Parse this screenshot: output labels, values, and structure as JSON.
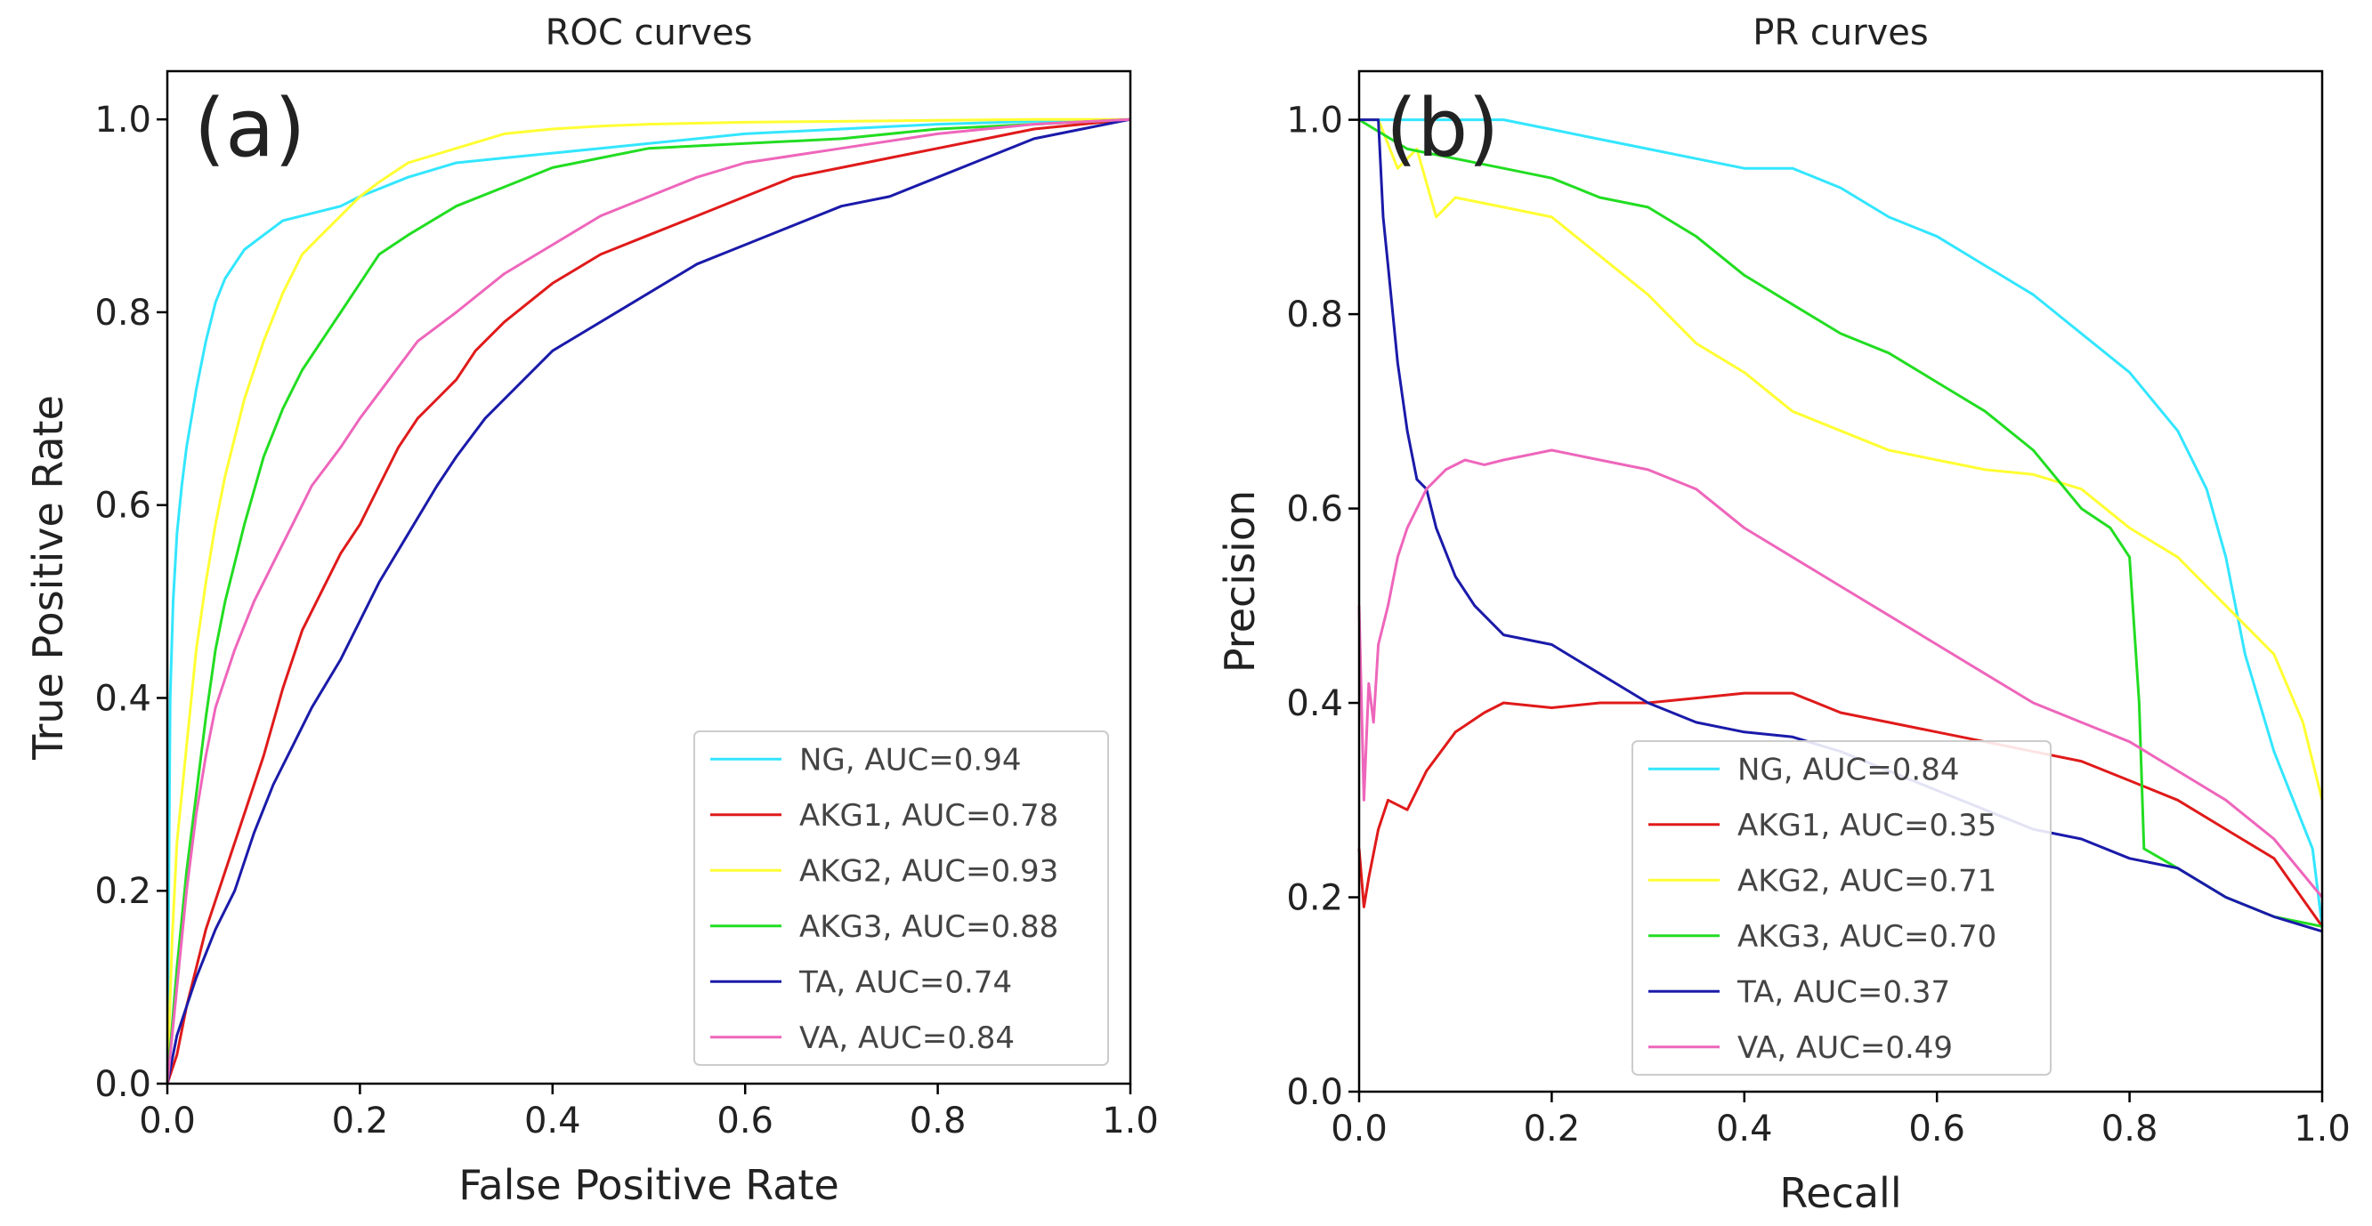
{
  "chart_data": [
    {
      "type": "line",
      "title": "ROC curves",
      "panel_label": "(a)",
      "xlabel": "False Positive Rate",
      "ylabel": "True Positive Rate",
      "xlim": [
        0,
        1
      ],
      "ylim": [
        0,
        1.05
      ],
      "xticks": [
        "0.0",
        "0.2",
        "0.4",
        "0.6",
        "0.8",
        "1.0"
      ],
      "yticks": [
        "0.0",
        "0.2",
        "0.4",
        "0.6",
        "0.8",
        "1.0"
      ],
      "grid": false,
      "legend_position": "lower-right",
      "series": [
        {
          "name": "NG",
          "label": "NG, AUC=0.94",
          "color": "#33e6ff",
          "x": [
            0,
            0.003,
            0.006,
            0.01,
            0.015,
            0.02,
            0.03,
            0.04,
            0.05,
            0.06,
            0.07,
            0.08,
            0.1,
            0.12,
            0.14,
            0.18,
            0.2,
            0.25,
            0.3,
            0.35,
            0.4,
            0.45,
            0.5,
            0.55,
            0.6,
            0.7,
            0.8,
            0.9,
            1.0
          ],
          "y": [
            0,
            0.4,
            0.5,
            0.57,
            0.62,
            0.66,
            0.72,
            0.77,
            0.81,
            0.835,
            0.85,
            0.865,
            0.88,
            0.895,
            0.9,
            0.91,
            0.92,
            0.94,
            0.955,
            0.96,
            0.965,
            0.97,
            0.975,
            0.98,
            0.985,
            0.99,
            0.995,
            0.998,
            1.0
          ]
        },
        {
          "name": "AKG1",
          "label": "AKG1, AUC=0.78",
          "color": "#e01a1a",
          "x": [
            0,
            0.01,
            0.02,
            0.03,
            0.04,
            0.06,
            0.08,
            0.1,
            0.12,
            0.14,
            0.16,
            0.18,
            0.2,
            0.22,
            0.24,
            0.26,
            0.28,
            0.3,
            0.32,
            0.35,
            0.4,
            0.45,
            0.5,
            0.55,
            0.6,
            0.65,
            0.7,
            0.75,
            0.8,
            0.85,
            0.9,
            0.95,
            1.0
          ],
          "y": [
            0,
            0.03,
            0.08,
            0.12,
            0.16,
            0.22,
            0.28,
            0.34,
            0.41,
            0.47,
            0.51,
            0.55,
            0.58,
            0.62,
            0.66,
            0.69,
            0.71,
            0.73,
            0.76,
            0.79,
            0.83,
            0.86,
            0.88,
            0.9,
            0.92,
            0.94,
            0.95,
            0.96,
            0.97,
            0.98,
            0.99,
            0.995,
            1.0
          ]
        },
        {
          "name": "AKG2",
          "label": "AKG2, AUC=0.93",
          "color": "#ffff33",
          "x": [
            0,
            0.005,
            0.01,
            0.02,
            0.03,
            0.04,
            0.05,
            0.06,
            0.08,
            0.1,
            0.12,
            0.14,
            0.16,
            0.18,
            0.2,
            0.22,
            0.25,
            0.3,
            0.35,
            0.4,
            0.45,
            0.5,
            0.6,
            0.7,
            0.8,
            0.9,
            1.0
          ],
          "y": [
            0,
            0.15,
            0.25,
            0.35,
            0.45,
            0.52,
            0.58,
            0.63,
            0.71,
            0.77,
            0.82,
            0.86,
            0.88,
            0.9,
            0.92,
            0.935,
            0.955,
            0.97,
            0.985,
            0.99,
            0.993,
            0.995,
            0.997,
            0.998,
            0.999,
            1.0,
            1.0
          ]
        },
        {
          "name": "AKG3",
          "label": "AKG3, AUC=0.88",
          "color": "#22dd22",
          "x": [
            0,
            0.01,
            0.02,
            0.03,
            0.04,
            0.05,
            0.06,
            0.08,
            0.1,
            0.12,
            0.14,
            0.16,
            0.18,
            0.2,
            0.22,
            0.25,
            0.3,
            0.35,
            0.4,
            0.45,
            0.5,
            0.6,
            0.7,
            0.8,
            0.9,
            1.0
          ],
          "y": [
            0,
            0.12,
            0.22,
            0.3,
            0.38,
            0.45,
            0.5,
            0.58,
            0.65,
            0.7,
            0.74,
            0.77,
            0.8,
            0.83,
            0.86,
            0.88,
            0.91,
            0.93,
            0.95,
            0.96,
            0.97,
            0.975,
            0.98,
            0.99,
            0.995,
            1.0
          ]
        },
        {
          "name": "TA",
          "label": "TA, AUC=0.74",
          "color": "#1a1aaa",
          "x": [
            0,
            0.01,
            0.02,
            0.03,
            0.05,
            0.07,
            0.09,
            0.11,
            0.13,
            0.15,
            0.18,
            0.2,
            0.22,
            0.25,
            0.28,
            0.3,
            0.33,
            0.36,
            0.4,
            0.45,
            0.5,
            0.55,
            0.6,
            0.65,
            0.7,
            0.75,
            0.8,
            0.85,
            0.9,
            0.95,
            1.0
          ],
          "y": [
            0,
            0.05,
            0.08,
            0.11,
            0.16,
            0.2,
            0.26,
            0.31,
            0.35,
            0.39,
            0.44,
            0.48,
            0.52,
            0.57,
            0.62,
            0.65,
            0.69,
            0.72,
            0.76,
            0.79,
            0.82,
            0.85,
            0.87,
            0.89,
            0.91,
            0.92,
            0.94,
            0.96,
            0.98,
            0.99,
            1.0
          ]
        },
        {
          "name": "VA",
          "label": "VA, AUC=0.84",
          "color": "#ee66bb",
          "x": [
            0,
            0.01,
            0.02,
            0.03,
            0.04,
            0.05,
            0.07,
            0.09,
            0.11,
            0.13,
            0.15,
            0.18,
            0.2,
            0.23,
            0.26,
            0.3,
            0.35,
            0.4,
            0.45,
            0.5,
            0.55,
            0.6,
            0.7,
            0.8,
            0.9,
            1.0
          ],
          "y": [
            0,
            0.1,
            0.2,
            0.28,
            0.34,
            0.39,
            0.45,
            0.5,
            0.54,
            0.58,
            0.62,
            0.66,
            0.69,
            0.73,
            0.77,
            0.8,
            0.84,
            0.87,
            0.9,
            0.92,
            0.94,
            0.955,
            0.97,
            0.985,
            0.995,
            1.0
          ]
        }
      ]
    },
    {
      "type": "line",
      "title": "PR curves",
      "panel_label": "(b)",
      "xlabel": "Recall",
      "ylabel": "Precision",
      "xlim": [
        0,
        1
      ],
      "ylim": [
        0,
        1.05
      ],
      "xticks": [
        "0.0",
        "0.2",
        "0.4",
        "0.6",
        "0.8",
        "1.0"
      ],
      "yticks": [
        "0.0",
        "0.2",
        "0.4",
        "0.6",
        "0.8",
        "1.0"
      ],
      "grid": false,
      "legend_position": "lower-center",
      "series": [
        {
          "name": "NG",
          "label": "NG, AUC=0.84",
          "color": "#33e6ff",
          "x": [
            0,
            0.05,
            0.1,
            0.15,
            0.2,
            0.25,
            0.3,
            0.35,
            0.4,
            0.45,
            0.5,
            0.55,
            0.6,
            0.65,
            0.7,
            0.75,
            0.8,
            0.85,
            0.88,
            0.9,
            0.92,
            0.95,
            0.97,
            0.99,
            1.0
          ],
          "y": [
            1.0,
            1.0,
            1.0,
            1.0,
            0.99,
            0.98,
            0.97,
            0.96,
            0.95,
            0.95,
            0.93,
            0.9,
            0.88,
            0.85,
            0.82,
            0.78,
            0.74,
            0.68,
            0.62,
            0.55,
            0.45,
            0.35,
            0.3,
            0.25,
            0.17
          ]
        },
        {
          "name": "AKG1",
          "label": "AKG1, AUC=0.35",
          "color": "#e01a1a",
          "x": [
            0,
            0.005,
            0.01,
            0.02,
            0.03,
            0.05,
            0.07,
            0.1,
            0.13,
            0.15,
            0.2,
            0.25,
            0.3,
            0.35,
            0.4,
            0.45,
            0.5,
            0.55,
            0.6,
            0.65,
            0.7,
            0.75,
            0.8,
            0.85,
            0.9,
            0.95,
            1.0
          ],
          "y": [
            0.25,
            0.19,
            0.22,
            0.27,
            0.3,
            0.29,
            0.33,
            0.37,
            0.39,
            0.4,
            0.395,
            0.4,
            0.4,
            0.405,
            0.41,
            0.41,
            0.39,
            0.38,
            0.37,
            0.36,
            0.35,
            0.34,
            0.32,
            0.3,
            0.27,
            0.24,
            0.17
          ]
        },
        {
          "name": "AKG2",
          "label": "AKG2, AUC=0.71",
          "color": "#ffff33",
          "x": [
            0,
            0.02,
            0.04,
            0.06,
            0.08,
            0.1,
            0.15,
            0.2,
            0.25,
            0.3,
            0.35,
            0.4,
            0.45,
            0.5,
            0.55,
            0.6,
            0.65,
            0.7,
            0.75,
            0.8,
            0.85,
            0.9,
            0.95,
            0.98,
            1.0
          ],
          "y": [
            1.0,
            1.0,
            0.95,
            0.97,
            0.9,
            0.92,
            0.91,
            0.9,
            0.86,
            0.82,
            0.77,
            0.74,
            0.7,
            0.68,
            0.66,
            0.65,
            0.64,
            0.635,
            0.62,
            0.58,
            0.55,
            0.5,
            0.45,
            0.38,
            0.3
          ]
        },
        {
          "name": "AKG3",
          "label": "AKG3, AUC=0.70",
          "color": "#22dd22",
          "x": [
            0,
            0.05,
            0.1,
            0.15,
            0.2,
            0.25,
            0.3,
            0.35,
            0.4,
            0.45,
            0.5,
            0.55,
            0.6,
            0.65,
            0.7,
            0.75,
            0.78,
            0.8,
            0.81,
            0.815,
            0.85,
            0.9,
            0.95,
            1.0
          ],
          "y": [
            1.0,
            0.97,
            0.96,
            0.95,
            0.94,
            0.92,
            0.91,
            0.88,
            0.84,
            0.81,
            0.78,
            0.76,
            0.73,
            0.7,
            0.66,
            0.6,
            0.58,
            0.55,
            0.4,
            0.25,
            0.23,
            0.2,
            0.18,
            0.17
          ]
        },
        {
          "name": "TA",
          "label": "TA, AUC=0.37",
          "color": "#1a1aaa",
          "x": [
            0,
            0.02,
            0.025,
            0.03,
            0.04,
            0.05,
            0.06,
            0.07,
            0.08,
            0.1,
            0.12,
            0.15,
            0.2,
            0.25,
            0.3,
            0.35,
            0.4,
            0.45,
            0.5,
            0.55,
            0.6,
            0.65,
            0.7,
            0.75,
            0.8,
            0.85,
            0.9,
            0.95,
            1.0
          ],
          "y": [
            1.0,
            1.0,
            0.9,
            0.85,
            0.75,
            0.68,
            0.63,
            0.62,
            0.58,
            0.53,
            0.5,
            0.47,
            0.46,
            0.43,
            0.4,
            0.38,
            0.37,
            0.365,
            0.35,
            0.33,
            0.31,
            0.29,
            0.27,
            0.26,
            0.24,
            0.23,
            0.2,
            0.18,
            0.165
          ]
        },
        {
          "name": "VA",
          "label": "VA, AUC=0.49",
          "color": "#ee66bb",
          "x": [
            0,
            0.005,
            0.01,
            0.015,
            0.02,
            0.03,
            0.04,
            0.05,
            0.07,
            0.09,
            0.11,
            0.13,
            0.15,
            0.2,
            0.25,
            0.3,
            0.35,
            0.4,
            0.45,
            0.5,
            0.55,
            0.6,
            0.65,
            0.7,
            0.75,
            0.8,
            0.85,
            0.9,
            0.95,
            1.0
          ],
          "y": [
            0.5,
            0.3,
            0.42,
            0.38,
            0.46,
            0.5,
            0.55,
            0.58,
            0.62,
            0.64,
            0.65,
            0.645,
            0.65,
            0.66,
            0.65,
            0.64,
            0.62,
            0.58,
            0.55,
            0.52,
            0.49,
            0.46,
            0.43,
            0.4,
            0.38,
            0.36,
            0.33,
            0.3,
            0.26,
            0.2
          ]
        }
      ]
    }
  ]
}
